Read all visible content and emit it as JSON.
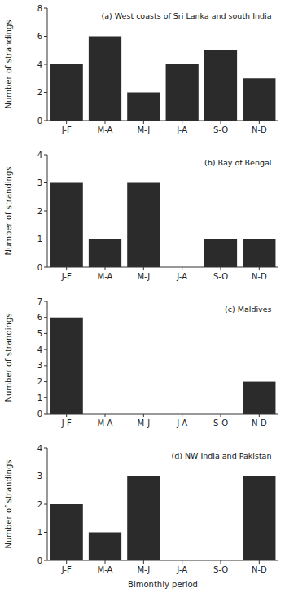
{
  "chart_data": [
    {
      "type": "bar",
      "title": "(a) West coasts of Sri Lanka and south India",
      "categories": [
        "J-F",
        "M-A",
        "M-J",
        "J-A",
        "S-O",
        "N-D"
      ],
      "values": [
        4,
        6,
        2,
        4,
        5,
        3
      ],
      "color": "#2b2b2b",
      "ylim": [
        0,
        8
      ],
      "yticks": [
        0,
        2,
        4,
        6,
        8
      ],
      "ylabel": "Number of strandings",
      "grid": false
    },
    {
      "type": "bar",
      "title": "(b) Bay of Bengal",
      "categories": [
        "J-F",
        "M-A",
        "M-J",
        "J-A",
        "S-O",
        "N-D"
      ],
      "values": [
        3,
        1,
        3,
        0,
        1,
        1
      ],
      "color": "#2b2b2b",
      "ylim": [
        0,
        4
      ],
      "yticks": [
        0,
        1,
        2,
        3,
        4
      ],
      "ylabel": "Number of strandings",
      "grid": false
    },
    {
      "type": "bar",
      "title": "(c) Maldives",
      "categories": [
        "J-F",
        "M-A",
        "M-J",
        "J-A",
        "S-O",
        "N-D"
      ],
      "values": [
        6,
        0,
        0,
        0,
        0,
        2
      ],
      "color": "#2b2b2b",
      "ylim": [
        0,
        7
      ],
      "yticks": [
        0,
        1,
        2,
        3,
        4,
        5,
        6,
        7
      ],
      "ylabel": "Number of strandings",
      "grid": false
    },
    {
      "type": "bar",
      "title": "(d) NW India and Pakistan",
      "categories": [
        "J-F",
        "M-A",
        "M-J",
        "J-A",
        "S-O",
        "N-D"
      ],
      "values": [
        2,
        1,
        3,
        0,
        0,
        3
      ],
      "color": "#2b2b2b",
      "ylim": [
        0,
        4
      ],
      "yticks": [
        0,
        1,
        2,
        3,
        4
      ],
      "ylabel": "Number of strandings",
      "xlabel": "Bimonthly period",
      "grid": false
    }
  ]
}
